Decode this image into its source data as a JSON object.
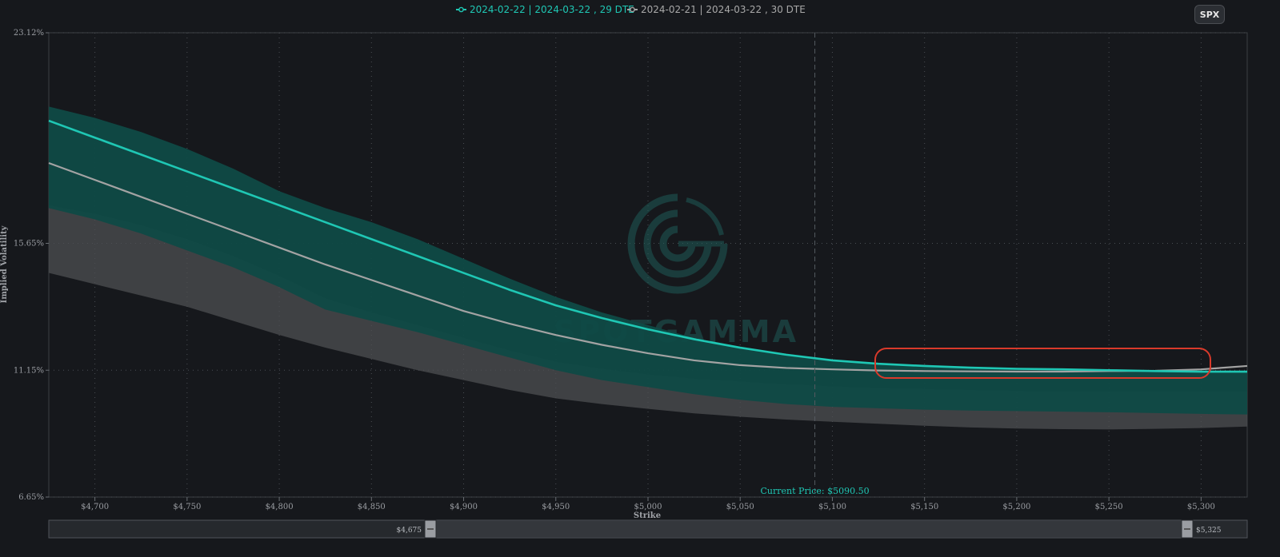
{
  "symbol_button": "SPX",
  "watermark_text": "SPOTGAMMA",
  "colors": {
    "series1": "#1fc7b4",
    "series1_band": "#0f4a46",
    "series2": "#a3a3a3",
    "series2_band": "#4d4f52",
    "background": "#16181c",
    "annotation": "#d93a2b"
  },
  "chart_data": {
    "type": "line",
    "xlabel": "Strike",
    "ylabel": "Implied Volatility",
    "xlim": [
      4675,
      5325
    ],
    "ylim": [
      6.65,
      23.12
    ],
    "x_ticks": [
      4700,
      4750,
      4800,
      4850,
      4900,
      4950,
      5000,
      5050,
      5100,
      5150,
      5200,
      5250,
      5300
    ],
    "x_tick_labels": [
      "$4,700",
      "$4,750",
      "$4,800",
      "$4,850",
      "$4,900",
      "$4,950",
      "$5,000",
      "$5,050",
      "$5,100",
      "$5,150",
      "$5,200",
      "$5,250",
      "$5,300"
    ],
    "y_ticks": [
      6.65,
      11.15,
      15.65,
      23.12
    ],
    "y_tick_labels": [
      "6.65%",
      "11.15%",
      "15.65%",
      "23.12%"
    ],
    "current_price": 5090.5,
    "current_price_label": "Current Price: $5090.50",
    "range_slider": {
      "min_label": "$4,675",
      "max_label": "$5,325"
    },
    "x": [
      4675,
      4700,
      4725,
      4750,
      4775,
      4800,
      4825,
      4850,
      4875,
      4900,
      4925,
      4950,
      4975,
      5000,
      5025,
      5050,
      5075,
      5100,
      5125,
      5150,
      5175,
      5200,
      5225,
      5250,
      5275,
      5300,
      5325
    ],
    "series": [
      {
        "name": "2024-02-22 | 2024-03-22 , 29 DTE",
        "values": [
          20.0,
          19.4,
          18.8,
          18.2,
          17.6,
          17.0,
          16.4,
          15.8,
          15.2,
          14.6,
          14.0,
          13.45,
          13.0,
          12.6,
          12.25,
          11.95,
          11.7,
          11.5,
          11.38,
          11.3,
          11.24,
          11.2,
          11.18,
          11.15,
          11.12,
          11.1,
          11.1
        ],
        "upper": [
          20.5,
          20.1,
          19.6,
          19.0,
          18.3,
          17.5,
          16.9,
          16.4,
          15.8,
          15.1,
          14.4,
          13.75,
          13.2,
          12.75,
          12.3,
          11.95,
          11.7,
          11.5,
          11.38,
          11.3,
          11.24,
          11.2,
          11.18,
          11.15,
          11.12,
          11.1,
          11.1
        ],
        "lower": [
          16.9,
          16.5,
          16.0,
          15.4,
          14.8,
          14.1,
          13.3,
          12.9,
          12.5,
          12.05,
          11.6,
          11.15,
          10.8,
          10.55,
          10.3,
          10.1,
          9.95,
          9.85,
          9.8,
          9.75,
          9.72,
          9.7,
          9.68,
          9.66,
          9.63,
          9.6,
          9.58
        ]
      },
      {
        "name": "2024-02-21 | 2024-03-22 , 30 DTE",
        "values": [
          18.5,
          17.9,
          17.3,
          16.7,
          16.1,
          15.5,
          14.9,
          14.35,
          13.8,
          13.25,
          12.8,
          12.4,
          12.05,
          11.75,
          11.5,
          11.33,
          11.23,
          11.18,
          11.14,
          11.12,
          11.11,
          11.1,
          11.1,
          11.12,
          11.13,
          11.18,
          11.3
        ],
        "upper": [
          17.0,
          16.7,
          16.3,
          15.8,
          15.2,
          14.5,
          13.7,
          13.2,
          12.75,
          12.3,
          11.85,
          11.45,
          11.2,
          11.0,
          10.85,
          10.75,
          10.65,
          10.58,
          10.52,
          10.48,
          10.45,
          10.42,
          10.4,
          10.4,
          10.4,
          10.4,
          10.4
        ],
        "lower": [
          14.6,
          14.2,
          13.8,
          13.4,
          12.9,
          12.4,
          11.95,
          11.55,
          11.15,
          10.8,
          10.45,
          10.15,
          9.95,
          9.78,
          9.62,
          9.5,
          9.4,
          9.32,
          9.25,
          9.18,
          9.12,
          9.08,
          9.06,
          9.05,
          9.07,
          9.1,
          9.15
        ]
      }
    ]
  }
}
